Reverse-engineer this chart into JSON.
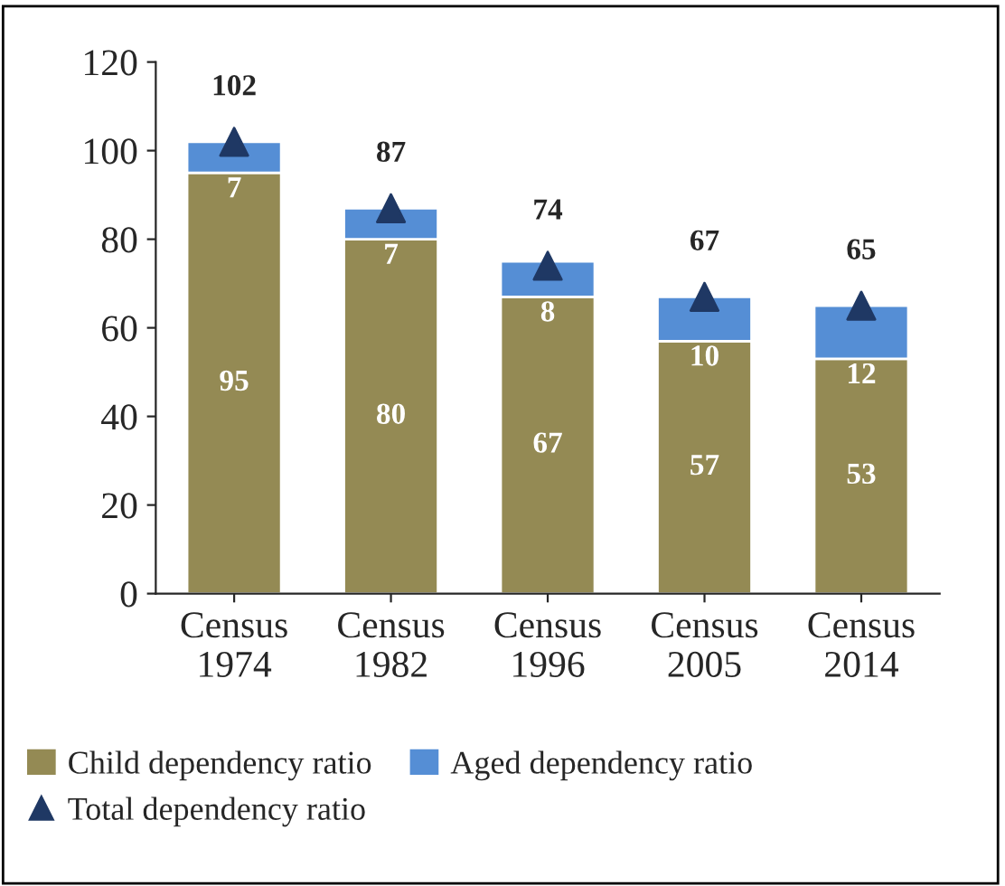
{
  "chart_data": {
    "type": "bar",
    "stacked": true,
    "categories": [
      "Census\n1974",
      "Census\n1982",
      "Census\n1996",
      "Census\n2005",
      "Census\n2014"
    ],
    "series": [
      {
        "name": "Child dependency ratio",
        "color": "#948a54",
        "values": [
          95,
          80,
          67,
          57,
          53
        ]
      },
      {
        "name": "Aged dependency ratio",
        "color": "#558ed5",
        "values": [
          7,
          7,
          8,
          10,
          12
        ]
      },
      {
        "name": "Total dependency ratio",
        "type": "scatter",
        "color": "#1f3864",
        "marker": "triangle",
        "values": [
          102,
          87,
          74,
          67,
          65
        ]
      }
    ],
    "ylim": [
      0,
      120
    ],
    "yticks": [
      0,
      20,
      40,
      60,
      80,
      100,
      120
    ],
    "data_labels": true,
    "grid": false,
    "legend": "bottom"
  }
}
